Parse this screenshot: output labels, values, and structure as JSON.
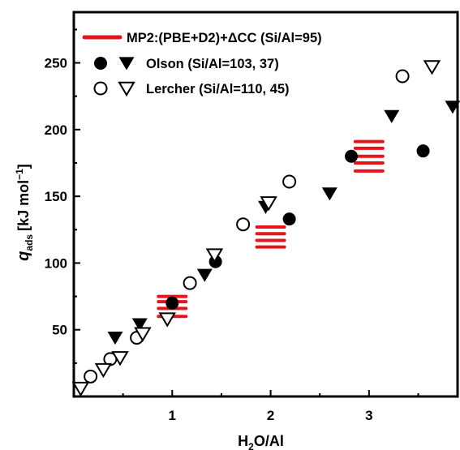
{
  "chart_data": {
    "type": "scatter",
    "xlabel": "H2O/Al",
    "xlabel_main": "H",
    "xlabel_sub": "2",
    "xlabel_tail": "O/Al",
    "ylabel": "q_ads [kJ mol^-1]",
    "ylabel_q": "q",
    "ylabel_sub": "ads",
    "ylabel_unit": "[kJ mol",
    "ylabel_sup": "−1",
    "ylabel_close": "]",
    "xlim": [
      0,
      3.9
    ],
    "ylim": [
      0,
      288
    ],
    "xticks": [
      1,
      2,
      3
    ],
    "xtick_labels": [
      "1",
      "2",
      "3"
    ],
    "yticks": [
      50,
      100,
      150,
      200,
      250
    ],
    "ytick_labels": [
      "50",
      "100",
      "150",
      "200",
      "250"
    ],
    "grid": false,
    "legend_position": "top-left",
    "legend": [
      "MP2:(PBE+D2)+ΔCC (Si/Al=95)",
      "Olson (Si/Al=103, 37)",
      "Lercher (Si/Al=110, 45)"
    ],
    "series": [
      {
        "name": "MP2:(PBE+D2)+ΔCC (Si/Al=95)",
        "marker": "dash",
        "color": "#e3161b",
        "points": [
          {
            "x": 1.0,
            "y": 60
          },
          {
            "x": 1.0,
            "y": 66
          },
          {
            "x": 1.0,
            "y": 71
          },
          {
            "x": 1.0,
            "y": 75
          },
          {
            "x": 2.0,
            "y": 112
          },
          {
            "x": 2.0,
            "y": 117
          },
          {
            "x": 2.0,
            "y": 122
          },
          {
            "x": 2.0,
            "y": 127
          },
          {
            "x": 3.0,
            "y": 169
          },
          {
            "x": 3.0,
            "y": 175
          },
          {
            "x": 3.0,
            "y": 180
          },
          {
            "x": 3.0,
            "y": 186
          },
          {
            "x": 3.0,
            "y": 191
          }
        ]
      },
      {
        "name": "Olson (Si/Al=103)",
        "marker": "filled-circle",
        "color": "#000000",
        "points": [
          {
            "x": 1.0,
            "y": 70
          },
          {
            "x": 1.44,
            "y": 101
          },
          {
            "x": 2.19,
            "y": 133
          },
          {
            "x": 2.82,
            "y": 180
          },
          {
            "x": 3.55,
            "y": 184
          }
        ]
      },
      {
        "name": "Olson (Si/Al=37)",
        "marker": "filled-triangle-down",
        "color": "#000000",
        "points": [
          {
            "x": 0.42,
            "y": 44
          },
          {
            "x": 0.67,
            "y": 54
          },
          {
            "x": 1.33,
            "y": 91
          },
          {
            "x": 1.95,
            "y": 142
          },
          {
            "x": 2.6,
            "y": 152
          },
          {
            "x": 3.23,
            "y": 210
          },
          {
            "x": 3.85,
            "y": 217
          }
        ]
      },
      {
        "name": "Lercher (Si/Al=110)",
        "marker": "open-circle",
        "color": "#000000",
        "points": [
          {
            "x": 0.17,
            "y": 15
          },
          {
            "x": 0.37,
            "y": 28
          },
          {
            "x": 0.64,
            "y": 44
          },
          {
            "x": 1.18,
            "y": 85
          },
          {
            "x": 1.72,
            "y": 129
          },
          {
            "x": 2.19,
            "y": 161
          },
          {
            "x": 3.34,
            "y": 240
          }
        ]
      },
      {
        "name": "Lercher (Si/Al=45)",
        "marker": "open-triangle-down",
        "color": "#000000",
        "points": [
          {
            "x": 0.07,
            "y": 6
          },
          {
            "x": 0.3,
            "y": 20
          },
          {
            "x": 0.47,
            "y": 29
          },
          {
            "x": 0.7,
            "y": 47
          },
          {
            "x": 0.95,
            "y": 58
          },
          {
            "x": 1.43,
            "y": 106
          },
          {
            "x": 1.98,
            "y": 145
          },
          {
            "x": 3.64,
            "y": 247
          }
        ]
      }
    ]
  }
}
